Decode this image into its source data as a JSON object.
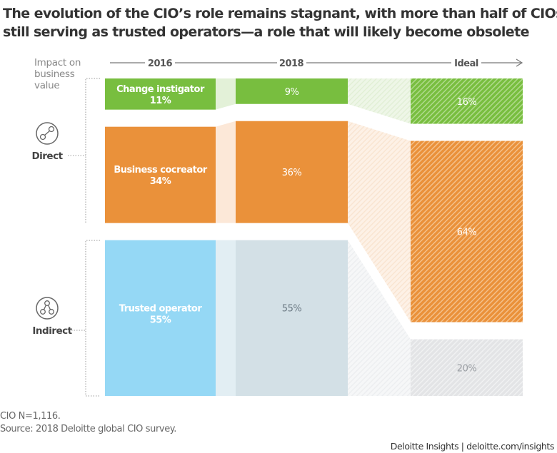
{
  "title_lines": [
    "The evolution of the CIO’s role remains stagnant, with more than half of CIOs",
    "still serving as trusted operators—a role that will likely become obsolete"
  ],
  "chart_data": {
    "type": "stacked-bar",
    "categories": [
      "2016",
      "2018",
      "Ideal"
    ],
    "y_axis_label_lines": [
      "Impact on",
      "business",
      "value"
    ],
    "groups": [
      {
        "label": "Direct",
        "icon": "direct-link-icon"
      },
      {
        "label": "Indirect",
        "icon": "indirect-network-icon"
      }
    ],
    "series": [
      {
        "name": "Change instigator",
        "values": [
          11,
          9,
          16
        ],
        "color": "#78BE3F"
      },
      {
        "name": "Business cocreator",
        "values": [
          34,
          36,
          64
        ],
        "color": "#EA913A"
      },
      {
        "name": "Trusted operator",
        "values": [
          55,
          55,
          20
        ],
        "color": "#95D8F5",
        "color_2018": "#D3E0E6",
        "color_ideal": "#E3E4E6"
      }
    ],
    "data_labels": [
      [
        "Change instigator\n11%",
        "9%",
        "16%"
      ],
      [
        "Business cocreator\n34%",
        "36%",
        "64%"
      ],
      [
        "Trusted operator\n55%",
        "55%",
        "20%"
      ]
    ],
    "ideal_style": "hatched"
  },
  "footnotes": [
    "CIO N=1,116.",
    "Source: 2018 Deloitte global CIO survey."
  ],
  "brand": "Deloitte Insights | deloitte.com/insights"
}
